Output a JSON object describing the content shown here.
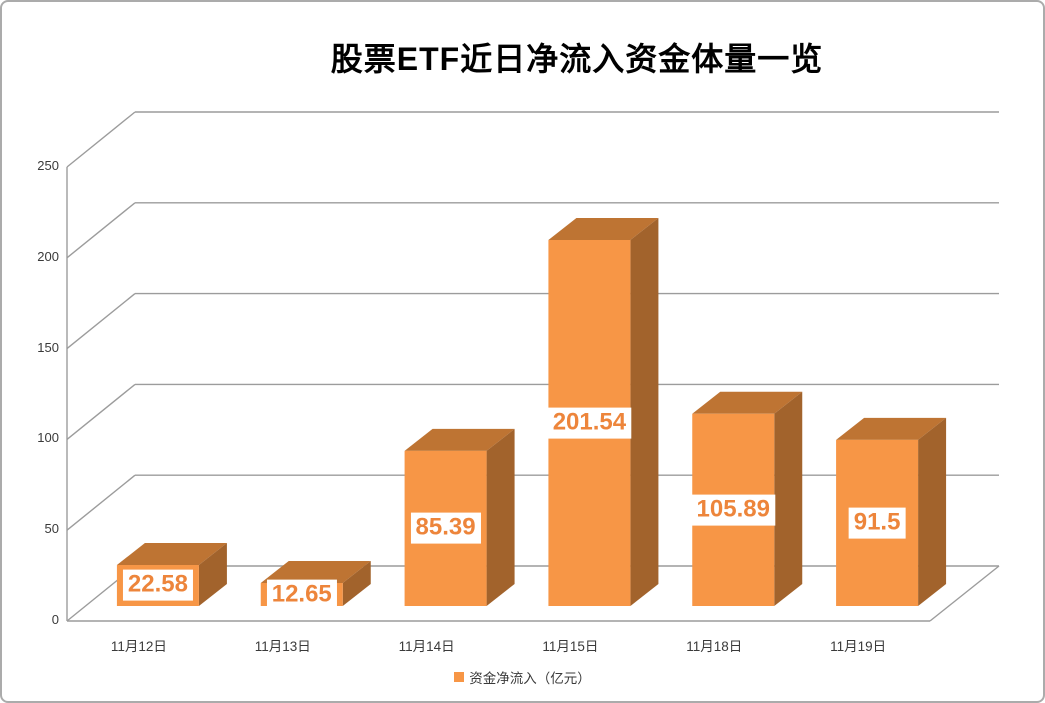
{
  "title": "股票ETF近日净流入资金体量一览",
  "legend": {
    "label": "资金净流入（亿元）"
  },
  "colors": {
    "bar_front": "#F79646",
    "bar_top": "#BE7433",
    "bar_side": "#A2632C",
    "value_text": "#ED853B",
    "value_bg": "#FFFFFF",
    "grid_line": "#9C9C9C",
    "axis_text": "#3A3A3A",
    "title_text": "#000000"
  },
  "chart_data": {
    "type": "bar",
    "projection": "3d",
    "title": "股票ETF近日净流入资金体量一览",
    "categories": [
      "11月12日",
      "11月13日",
      "11月14日",
      "11月15日",
      "11月18日",
      "11月19日"
    ],
    "series": [
      {
        "name": "资金净流入（亿元）",
        "values": [
          22.58,
          12.65,
          85.39,
          201.54,
          105.89,
          91.5
        ],
        "labels": [
          "22.58",
          "12.65",
          "85.39",
          "201.54",
          "105.89",
          "91.5"
        ],
        "color": "#F79646"
      }
    ],
    "xlabel": "",
    "ylabel": "",
    "ylim": [
      0,
      250
    ],
    "yticks": [
      0,
      50,
      100,
      150,
      200,
      250
    ],
    "grid": true,
    "data_labels": true,
    "legend_position": "bottom"
  }
}
